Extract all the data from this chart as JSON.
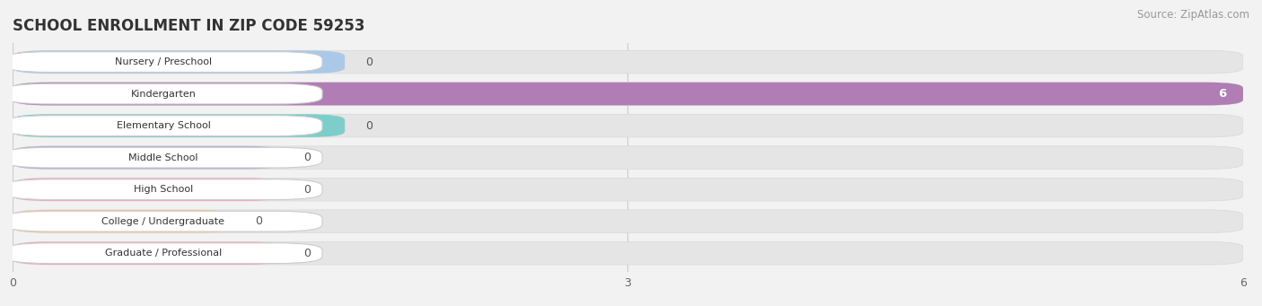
{
  "title": "SCHOOL ENROLLMENT IN ZIP CODE 59253",
  "source": "Source: ZipAtlas.com",
  "categories": [
    "Nursery / Preschool",
    "Kindergarten",
    "Elementary School",
    "Middle School",
    "High School",
    "College / Undergraduate",
    "Graduate / Professional"
  ],
  "values": [
    0,
    6,
    0,
    0,
    0,
    0,
    0
  ],
  "bar_colors": [
    "#aac9e8",
    "#b07db5",
    "#7dceca",
    "#abacd6",
    "#f5a5be",
    "#f5c898",
    "#f5a8a8"
  ],
  "xlim": [
    0,
    6
  ],
  "xticks": [
    0,
    3,
    6
  ],
  "background_color": "#f2f2f2",
  "bar_bg_color": "#e5e5e5",
  "title_fontsize": 12,
  "source_fontsize": 8.5,
  "zero_stub_fractions": [
    0.27,
    0,
    0.27,
    0.22,
    0.22,
    0.18,
    0.22
  ]
}
